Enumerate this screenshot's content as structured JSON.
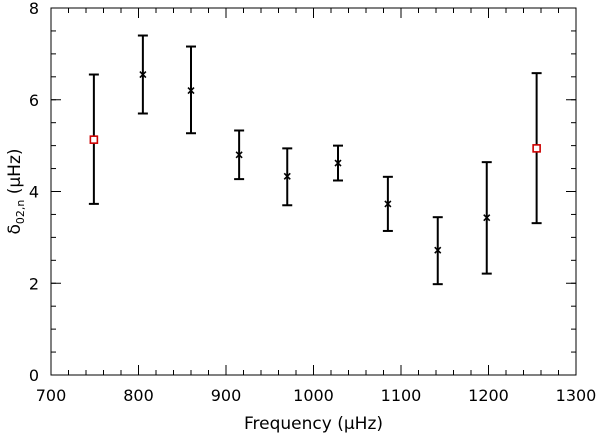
{
  "chart_data": {
    "type": "scatter",
    "title": "",
    "xlabel": "Frequency (μHz)",
    "ylabel_main": "δ",
    "ylabel_subscript": "02,n",
    "ylabel_unit": " (μHz)",
    "xlim": [
      700,
      1300
    ],
    "ylim": [
      0,
      8
    ],
    "x_ticks": [
      700,
      800,
      900,
      1000,
      1100,
      1200,
      1300
    ],
    "y_ticks": [
      0,
      2,
      4,
      6,
      8
    ],
    "x_minor_step": 20,
    "y_minor_step": 0.5,
    "grid": false,
    "legend": "none",
    "colors": {
      "axis": "#000000",
      "cross_marker": "#000000",
      "square_marker": "#cc0000",
      "error_bar": "#000000"
    },
    "series": [
      {
        "marker": "cross",
        "points": [
          {
            "x": 805,
            "y": 6.55,
            "yerr_low": 5.7,
            "yerr_high": 7.4
          },
          {
            "x": 860,
            "y": 6.2,
            "yerr_low": 5.27,
            "yerr_high": 7.16
          },
          {
            "x": 915,
            "y": 4.8,
            "yerr_low": 4.27,
            "yerr_high": 5.33
          },
          {
            "x": 970,
            "y": 4.33,
            "yerr_low": 3.7,
            "yerr_high": 4.94
          },
          {
            "x": 1028,
            "y": 4.62,
            "yerr_low": 4.24,
            "yerr_high": 5.0
          },
          {
            "x": 1085,
            "y": 3.73,
            "yerr_low": 3.14,
            "yerr_high": 4.32
          },
          {
            "x": 1142,
            "y": 2.72,
            "yerr_low": 1.98,
            "yerr_high": 3.44
          },
          {
            "x": 1198,
            "y": 3.43,
            "yerr_low": 2.21,
            "yerr_high": 4.64
          }
        ]
      },
      {
        "marker": "square",
        "points": [
          {
            "x": 749,
            "y": 5.13,
            "yerr_low": 3.73,
            "yerr_high": 6.55
          },
          {
            "x": 1255,
            "y": 4.94,
            "yerr_low": 3.31,
            "yerr_high": 6.58
          }
        ]
      }
    ]
  }
}
